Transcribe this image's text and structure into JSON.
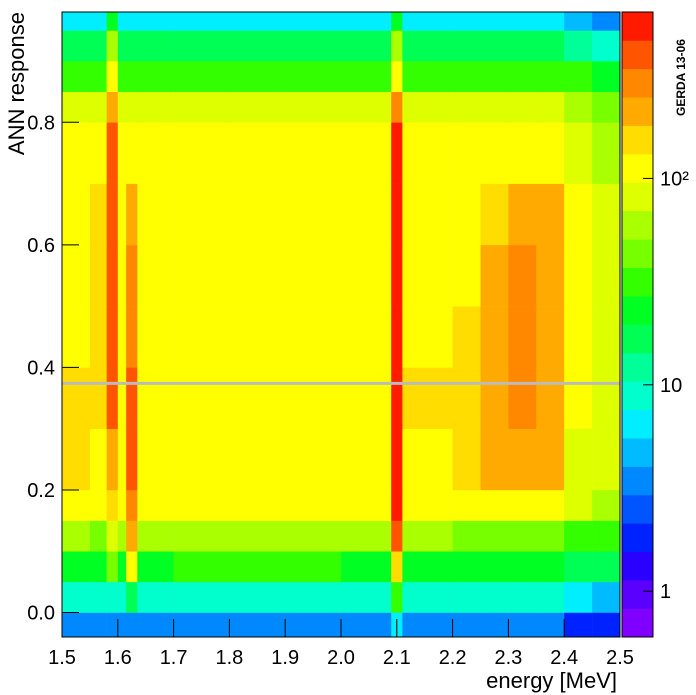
{
  "chart_data": {
    "type": "heatmap",
    "x_label": "energy [MeV]",
    "y_label": "ANN response",
    "annotation": "GERDA 13-06",
    "xlim": [
      1.5,
      2.5
    ],
    "ylim": [
      -0.04,
      0.98
    ],
    "zlim": [
      0.6,
      640
    ],
    "log_z": true,
    "xticks": [
      1.5,
      1.6,
      1.7,
      1.8,
      1.9,
      {
        "value": 2,
        "label": "2.0"
      },
      2.1,
      2.2,
      2.3,
      2.4,
      2.5
    ],
    "yticks": [
      {
        "value": 0,
        "label": "0.0"
      },
      0.2,
      0.4,
      0.6,
      0.8
    ],
    "zticks": [
      1,
      10,
      {
        "value": 100,
        "label": "10²"
      }
    ],
    "hline": 0.374,
    "hline_color": "#bbbbbb",
    "palette": [
      "#7f00ff",
      "#5a00ff",
      "#2a00ff",
      "#0022ff",
      "#0055ff",
      "#0088ff",
      "#00bbff",
      "#00eeff",
      "#00ffcc",
      "#00ff99",
      "#00ff55",
      "#00ff22",
      "#33ff00",
      "#77ff00",
      "#aaff00",
      "#ddff00",
      "#ffff00",
      "#ffdd00",
      "#ffaa00",
      "#ff8800",
      "#ff5500",
      "#ff1a00"
    ],
    "xbins": [
      1.5,
      1.55,
      1.58,
      1.6,
      1.615,
      1.635,
      1.7,
      1.8,
      1.9,
      2.0,
      2.09,
      2.11,
      2.2,
      2.25,
      2.3,
      2.35,
      2.4,
      2.45,
      2.5
    ],
    "ybins": [
      -0.04,
      0,
      0.05,
      0.1,
      0.15,
      0.2,
      0.3,
      0.4,
      0.5,
      0.6,
      0.7,
      0.8,
      0.85,
      0.9,
      0.95,
      0.98
    ],
    "z": [
      [
        3,
        3,
        4,
        3,
        4,
        3,
        3,
        3,
        3,
        3,
        6,
        3,
        3,
        3,
        3,
        3,
        2,
        2
      ],
      [
        8,
        8,
        10,
        8,
        15,
        8,
        9,
        9,
        9,
        8,
        30,
        8,
        8,
        8,
        8,
        8,
        6,
        5
      ],
      [
        25,
        25,
        40,
        25,
        100,
        25,
        28,
        28,
        28,
        25,
        150,
        25,
        25,
        25,
        25,
        22,
        18,
        15
      ],
      [
        55,
        50,
        80,
        55,
        200,
        55,
        55,
        55,
        55,
        55,
        450,
        55,
        50,
        50,
        50,
        45,
        35,
        30
      ],
      [
        100,
        100,
        150,
        100,
        300,
        100,
        100,
        100,
        100,
        100,
        500,
        100,
        100,
        110,
        120,
        110,
        80,
        60
      ],
      [
        140,
        130,
        200,
        130,
        350,
        130,
        130,
        130,
        130,
        130,
        500,
        130,
        140,
        200,
        220,
        200,
        90,
        70
      ],
      [
        140,
        140,
        350,
        130,
        350,
        130,
        130,
        130,
        130,
        130,
        500,
        140,
        150,
        240,
        260,
        240,
        100,
        70
      ],
      [
        130,
        140,
        400,
        130,
        300,
        130,
        130,
        130,
        130,
        130,
        500,
        130,
        140,
        210,
        250,
        230,
        100,
        70
      ],
      [
        130,
        140,
        400,
        130,
        300,
        130,
        130,
        130,
        130,
        130,
        500,
        130,
        130,
        200,
        250,
        230,
        100,
        70
      ],
      [
        130,
        140,
        400,
        130,
        200,
        130,
        130,
        130,
        130,
        130,
        500,
        130,
        130,
        180,
        240,
        200,
        100,
        70
      ],
      [
        110,
        120,
        400,
        120,
        130,
        120,
        120,
        120,
        120,
        120,
        500,
        120,
        120,
        120,
        130,
        120,
        90,
        60
      ],
      [
        70,
        70,
        200,
        70,
        70,
        70,
        70,
        70,
        70,
        70,
        250,
        70,
        70,
        70,
        70,
        70,
        60,
        50
      ],
      [
        35,
        35,
        100,
        35,
        35,
        35,
        35,
        35,
        35,
        35,
        120,
        35,
        35,
        35,
        35,
        35,
        30,
        25
      ],
      [
        15,
        15,
        60,
        15,
        15,
        15,
        15,
        15,
        15,
        15,
        60,
        15,
        15,
        15,
        15,
        15,
        12,
        10
      ],
      [
        6,
        6,
        20,
        6,
        6,
        6,
        6,
        6,
        6,
        6,
        20,
        6,
        6,
        6,
        6,
        6,
        5,
        4
      ]
    ]
  }
}
